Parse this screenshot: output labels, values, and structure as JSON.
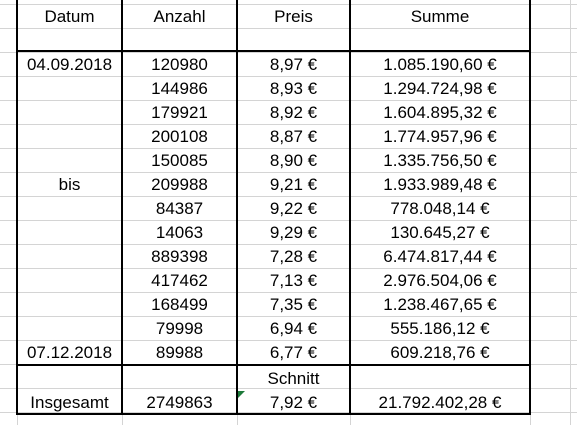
{
  "headers": {
    "datum": "Datum",
    "anzahl": "Anzahl",
    "preis": "Preis",
    "summe": "Summe"
  },
  "rows": [
    {
      "datum": "04.09.2018",
      "anzahl": "120980",
      "preis": "8,97 €",
      "summe": "1.085.190,60 €"
    },
    {
      "datum": "",
      "anzahl": "144986",
      "preis": "8,93 €",
      "summe": "1.294.724,98 €"
    },
    {
      "datum": "",
      "anzahl": "179921",
      "preis": "8,92 €",
      "summe": "1.604.895,32 €"
    },
    {
      "datum": "",
      "anzahl": "200108",
      "preis": "8,87 €",
      "summe": "1.774.957,96 €"
    },
    {
      "datum": "",
      "anzahl": "150085",
      "preis": "8,90 €",
      "summe": "1.335.756,50 €"
    },
    {
      "datum": "bis",
      "anzahl": "209988",
      "preis": "9,21 €",
      "summe": "1.933.989,48 €"
    },
    {
      "datum": "",
      "anzahl": "84387",
      "preis": "9,22 €",
      "summe": "778.048,14 €"
    },
    {
      "datum": "",
      "anzahl": "14063",
      "preis": "9,29 €",
      "summe": "130.645,27 €"
    },
    {
      "datum": "",
      "anzahl": "889398",
      "preis": "7,28 €",
      "summe": "6.474.817,44 €"
    },
    {
      "datum": "",
      "anzahl": "417462",
      "preis": "7,13 €",
      "summe": "2.976.504,06 €"
    },
    {
      "datum": "",
      "anzahl": "168499",
      "preis": "7,35 €",
      "summe": "1.238.467,65 €"
    },
    {
      "datum": "",
      "anzahl": "79998",
      "preis": "6,94 €",
      "summe": "555.186,12 €"
    },
    {
      "datum": "07.12.2018",
      "anzahl": "89988",
      "preis": "6,77 €",
      "summe": "609.218,76 €"
    }
  ],
  "schnitt_label": "Schnitt",
  "totals": {
    "label": "Insgesamt",
    "anzahl": "2749863",
    "preis": "7,92 €",
    "summe": "21.792.402,28 €"
  },
  "colors": {
    "gridline": "#d4d4d4",
    "border": "#000000",
    "indicator": "#1d7a3a"
  }
}
